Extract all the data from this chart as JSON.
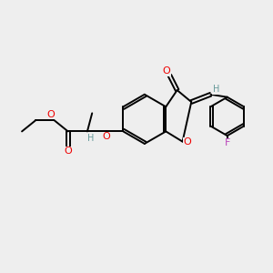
{
  "bg_color": "#eeeeee",
  "bond_color": "#000000",
  "bond_width": 1.4,
  "O_color": "#ee0000",
  "F_color": "#bb44bb",
  "H_color": "#669999",
  "figsize": [
    3.0,
    3.0
  ],
  "dpi": 100,
  "xlim": [
    0,
    10
  ],
  "ylim": [
    0,
    10
  ]
}
